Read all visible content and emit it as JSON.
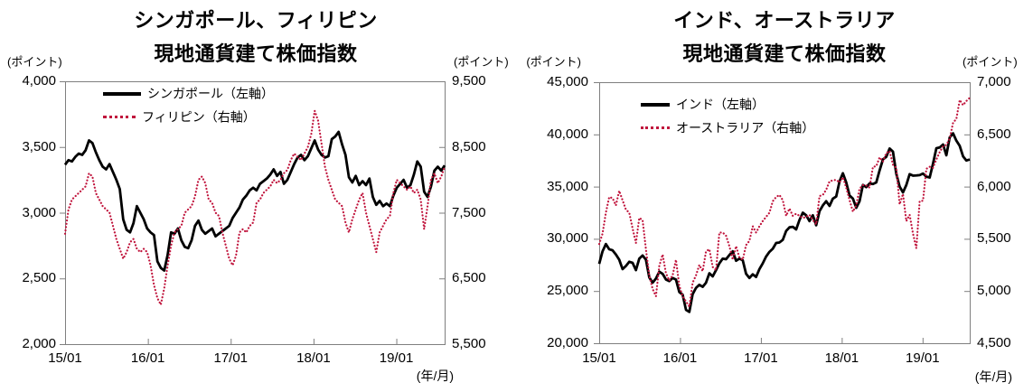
{
  "figure": {
    "background": "#FFFFFF"
  },
  "colors": {
    "axis_line": "#7F7F7F",
    "text": "#000000",
    "series_solid": "#000000",
    "series_dotted": "#C0143C"
  },
  "panels": [
    {
      "title_line1": "シンガポール、フィリピン",
      "title_line2": "現地通貨建て株価指数"
    },
    {
      "title_line1": "インド、オーストラリア",
      "title_line2": "現地通貨建て株価指数"
    }
  ],
  "chart_data": [
    {
      "type": "line",
      "title": "シンガポール、フィリピン 現地通貨建て株価指数",
      "legend_position": "top-left-inside",
      "x_axis": {
        "unit": "(年/月)",
        "tick_labels": [
          "15/01",
          "16/01",
          "17/01",
          "18/01",
          "19/01"
        ],
        "tick_interval_months": 12,
        "total_months": 55,
        "start": "2015/01",
        "end": "2019/08"
      },
      "left_axis": {
        "unit": "(ポイント)",
        "min": 2000,
        "max": 4000,
        "tick_step": 500,
        "tick_labels": [
          "4,000",
          "3,500",
          "3,000",
          "2,500",
          "2,000"
        ]
      },
      "right_axis": {
        "unit": "(ポイント)",
        "min": 5500,
        "max": 9500,
        "tick_step": 1000,
        "tick_labels": [
          "9,500",
          "8,500",
          "7,500",
          "6,500",
          "5,500"
        ]
      },
      "series": [
        {
          "id": "singapore",
          "name": "シンガポール（左軸）",
          "axis": "left",
          "style": "solid",
          "color": "#000000",
          "sampling": "approx-biweekly",
          "values": [
            3365,
            3400,
            3390,
            3425,
            3450,
            3440,
            3475,
            3550,
            3530,
            3460,
            3400,
            3350,
            3330,
            3370,
            3310,
            3250,
            3180,
            2950,
            2870,
            2850,
            2920,
            3050,
            3000,
            2950,
            2880,
            2850,
            2830,
            2630,
            2580,
            2560,
            2680,
            2850,
            2840,
            2880,
            2790,
            2740,
            2730,
            2790,
            2900,
            2940,
            2870,
            2840,
            2860,
            2880,
            2820,
            2840,
            2860,
            2880,
            2900,
            2960,
            3000,
            3040,
            3100,
            3130,
            3170,
            3190,
            3170,
            3220,
            3240,
            3260,
            3290,
            3330,
            3280,
            3310,
            3220,
            3250,
            3310,
            3370,
            3420,
            3440,
            3400,
            3430,
            3490,
            3550,
            3480,
            3440,
            3420,
            3430,
            3560,
            3580,
            3615,
            3520,
            3440,
            3270,
            3230,
            3280,
            3210,
            3240,
            3210,
            3260,
            3120,
            3060,
            3090,
            3050,
            3070,
            3050,
            3130,
            3190,
            3220,
            3250,
            3190,
            3210,
            3290,
            3390,
            3350,
            3160,
            3120,
            3200,
            3320,
            3350,
            3320,
            3360
          ]
        },
        {
          "id": "philippines",
          "name": "フィリピン（右軸）",
          "axis": "right",
          "style": "dotted",
          "color": "#C0143C",
          "sampling": "approx-biweekly",
          "values": [
            7180,
            7550,
            7700,
            7750,
            7800,
            7850,
            7900,
            8100,
            8050,
            7800,
            7700,
            7600,
            7550,
            7500,
            7300,
            7100,
            6950,
            6800,
            6900,
            7050,
            7100,
            6950,
            6900,
            6950,
            6900,
            6700,
            6400,
            6200,
            6100,
            6350,
            6700,
            7000,
            7200,
            7250,
            7300,
            7500,
            7550,
            7600,
            7750,
            8000,
            8050,
            7950,
            7700,
            7650,
            7500,
            7450,
            7200,
            7000,
            6800,
            6700,
            6850,
            7200,
            7250,
            7200,
            7300,
            7350,
            7650,
            7700,
            7800,
            7850,
            7900,
            8000,
            7950,
            8000,
            8100,
            8150,
            8300,
            8400,
            8350,
            8300,
            8400,
            8500,
            8700,
            9050,
            8900,
            8550,
            8200,
            8000,
            7850,
            7700,
            7650,
            7600,
            7350,
            7200,
            7400,
            7550,
            7700,
            7800,
            7500,
            7300,
            7100,
            6900,
            7200,
            7300,
            7400,
            7450,
            7800,
            8000,
            7950,
            7900,
            7850,
            7900,
            7800,
            7850,
            7700,
            7250,
            7600,
            8000,
            8100,
            7950,
            8050,
            8200
          ]
        }
      ]
    },
    {
      "type": "line",
      "title": "インド、オーストラリア 現地通貨建て株価指数",
      "legend_position": "top-left-inside",
      "x_axis": {
        "unit": "(年/月)",
        "tick_labels": [
          "15/01",
          "16/01",
          "17/01",
          "18/01",
          "19/01"
        ],
        "tick_interval_months": 12,
        "total_months": 55,
        "start": "2015/01",
        "end": "2019/08"
      },
      "left_axis": {
        "unit": "(ポイント)",
        "min": 20000,
        "max": 45000,
        "tick_step": 5000,
        "tick_labels": [
          "45,000",
          "40,000",
          "35,000",
          "30,000",
          "25,000",
          "20,000"
        ]
      },
      "right_axis": {
        "unit": "(ポイント)",
        "min": 4500,
        "max": 7000,
        "tick_step": 500,
        "tick_labels": [
          "7,000",
          "6,500",
          "6,000",
          "5,500",
          "5,000",
          "4,500"
        ]
      },
      "series": [
        {
          "id": "india",
          "name": "インド（左軸）",
          "axis": "left",
          "style": "solid",
          "color": "#000000",
          "sampling": "approx-biweekly",
          "values": [
            27600,
            28800,
            29500,
            29000,
            28900,
            28500,
            28000,
            27100,
            27400,
            27800,
            27700,
            27000,
            28100,
            28400,
            28000,
            26300,
            25800,
            26200,
            26850,
            26650,
            26100,
            25950,
            26250,
            26100,
            24900,
            24650,
            23200,
            23000,
            24700,
            25300,
            25600,
            25400,
            25800,
            26700,
            26400,
            27000,
            27650,
            28100,
            28050,
            28450,
            28800,
            27900,
            28100,
            27950,
            26650,
            26250,
            26600,
            26350,
            27100,
            27650,
            28300,
            28750,
            29050,
            29600,
            29650,
            29900,
            30750,
            31100,
            31150,
            30900,
            31800,
            32500,
            32250,
            31700,
            32250,
            31300,
            32650,
            33200,
            33600,
            33150,
            33850,
            34050,
            35500,
            36280,
            35400,
            34150,
            33850,
            32970,
            33600,
            35160,
            34950,
            35300,
            35250,
            35400,
            36550,
            37600,
            37850,
            38650,
            38350,
            36230,
            35000,
            34440,
            35150,
            36190,
            36050,
            36070,
            36100,
            36250,
            35950,
            35870,
            37200,
            38670,
            38750,
            39030,
            38000,
            39714,
            40100,
            39395,
            38900,
            37900,
            37500,
            37600
          ]
        },
        {
          "id": "australia",
          "name": "オーストラリア（右軸）",
          "axis": "right",
          "style": "dotted",
          "color": "#C0143C",
          "sampling": "approx-biweekly",
          "values": [
            5450,
            5550,
            5750,
            5900,
            5890,
            5820,
            5960,
            5870,
            5780,
            5750,
            5600,
            5460,
            5700,
            5680,
            5400,
            5150,
            5020,
            4950,
            5240,
            5350,
            5170,
            5100,
            5150,
            5300,
            5050,
            4950,
            4900,
            4850,
            5080,
            5150,
            5250,
            5190,
            5380,
            5400,
            5230,
            5200,
            5560,
            5560,
            5530,
            5430,
            5300,
            5430,
            5320,
            5300,
            5440,
            5480,
            5620,
            5560,
            5620,
            5670,
            5710,
            5750,
            5860,
            5900,
            5920,
            5870,
            5720,
            5790,
            5720,
            5740,
            5720,
            5700,
            5710,
            5730,
            5680,
            5640,
            5910,
            5920,
            5970,
            6050,
            6060,
            6065,
            6040,
            6090,
            5990,
            5870,
            5760,
            5820,
            5980,
            6015,
            6010,
            5990,
            6190,
            6195,
            6280,
            6240,
            6320,
            6340,
            6210,
            6180,
            5830,
            5930,
            5670,
            5730,
            5550,
            5410,
            5860,
            5865,
            6170,
            6190,
            6180,
            6260,
            6330,
            6385,
            6400,
            6460,
            6610,
            6650,
            6830,
            6780,
            6820,
            6850
          ]
        }
      ]
    }
  ]
}
